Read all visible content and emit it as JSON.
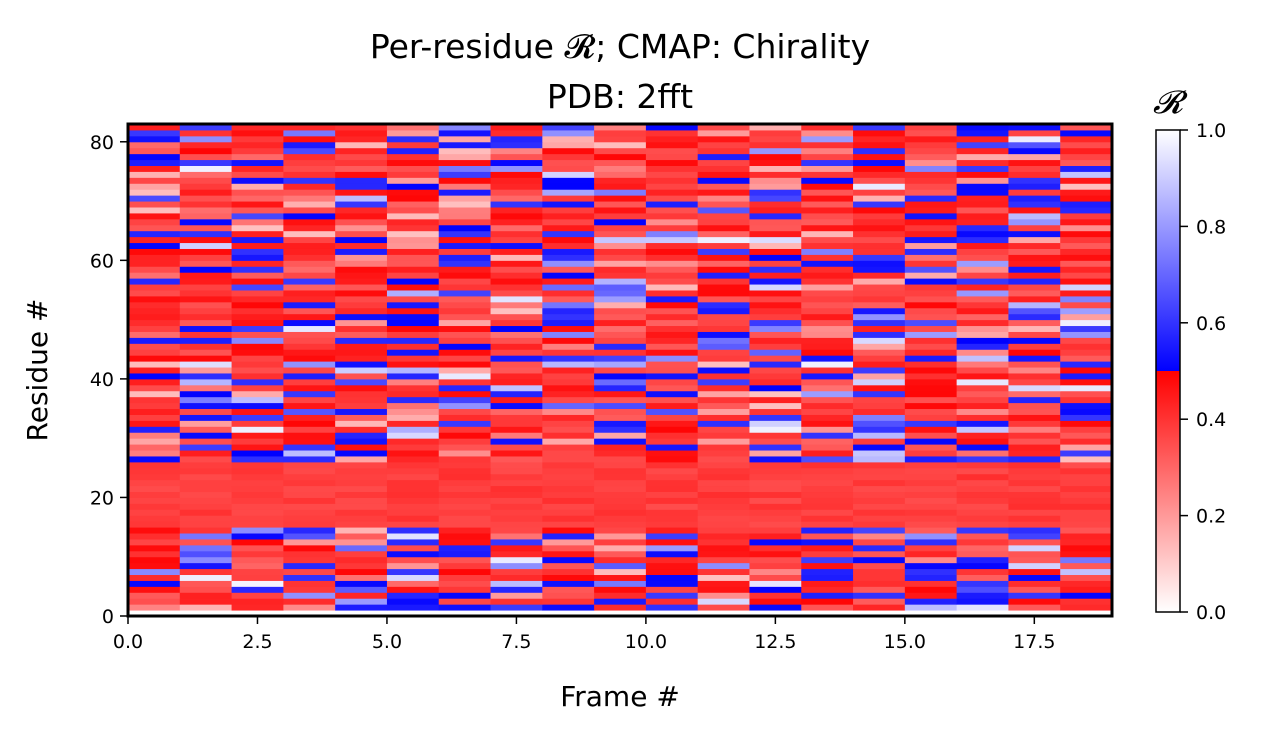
{
  "chart_data": {
    "type": "heatmap",
    "title": "Per-residue 𝓡; CMAP: Chirality",
    "subtitle": "PDB: 2fft",
    "xlabel": "Frame #",
    "ylabel": "Residue #",
    "xlim": [
      0,
      19
    ],
    "ylim": [
      0,
      83
    ],
    "x_ticks": [
      0.0,
      2.5,
      5.0,
      7.5,
      10.0,
      12.5,
      15.0,
      17.5
    ],
    "x_tick_labels": [
      "0.0",
      "2.5",
      "5.0",
      "7.5",
      "10.0",
      "12.5",
      "15.0",
      "17.5"
    ],
    "y_ticks": [
      0,
      20,
      40,
      60,
      80
    ],
    "y_tick_labels": [
      "0",
      "20",
      "40",
      "60",
      "80"
    ],
    "frames": 19,
    "residues": 82,
    "colorbar": {
      "label": "𝓡",
      "range": [
        0,
        1
      ],
      "ticks": [
        0.0,
        0.2,
        0.4,
        0.6,
        0.8,
        1.0
      ],
      "tick_labels": [
        "0.0",
        "0.2",
        "0.4",
        "0.6",
        "0.8",
        "1.0"
      ],
      "colormap": "red (0–0.5: white→red) / blue (0.5–1: blue→white)",
      "colors": {
        "white": "#ffffff",
        "red": "#ff0000",
        "blue": "#0000ff"
      }
    },
    "grid": false,
    "legend": "colorbar-right",
    "value_estimates": {
      "note_rows": "residues 14-24 are nearly uniform red (~0.38)",
      "residues_14_24": 0.38
    }
  }
}
